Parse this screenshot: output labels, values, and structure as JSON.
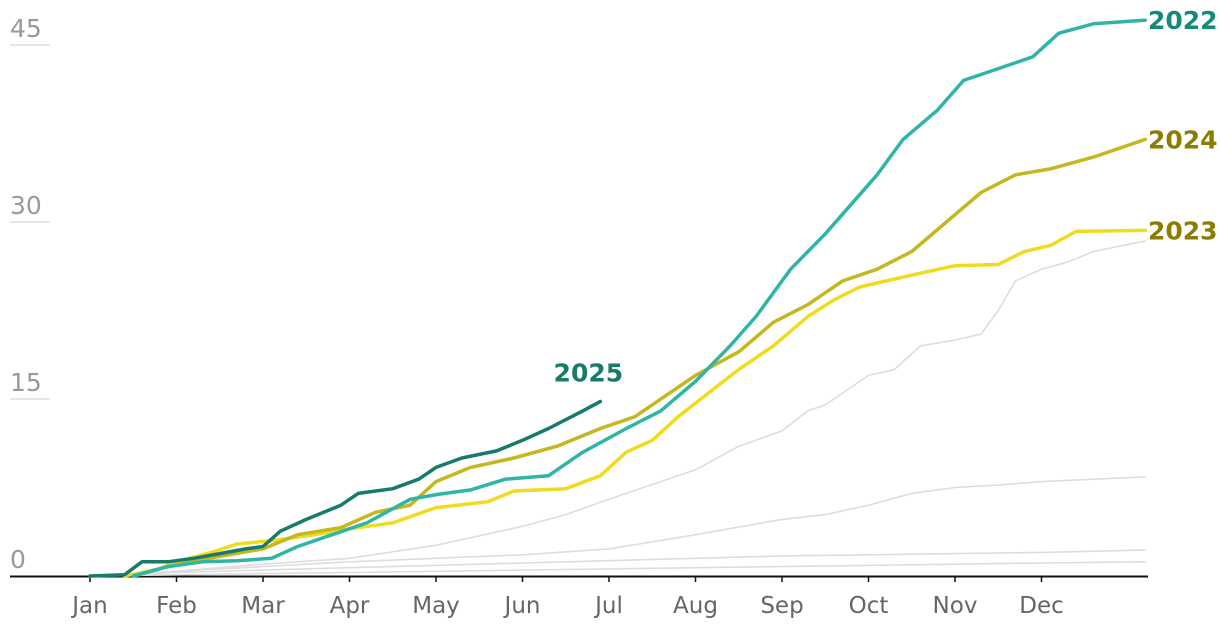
{
  "chart_data": {
    "type": "line",
    "title": "",
    "xlabel": "",
    "ylabel": "",
    "ylim": [
      0,
      46
    ],
    "xlim": [
      0,
      12.2
    ],
    "y_ticks": [
      0,
      15,
      30,
      45
    ],
    "y_tick_labels": [
      "0",
      "15",
      "30",
      "45"
    ],
    "x_ticks": [
      0,
      1,
      2,
      3,
      4,
      5,
      6,
      7,
      8,
      9,
      10,
      11
    ],
    "x_tick_labels": [
      "Jan",
      "Feb",
      "Mar",
      "Apr",
      "May",
      "Jun",
      "Jul",
      "Aug",
      "Sep",
      "Oct",
      "Nov",
      "Dec"
    ],
    "grid": false,
    "series": [
      {
        "name": "",
        "color": "#dddddd",
        "width": 1.6,
        "points": [
          [
            0,
            0
          ],
          [
            1,
            0.1
          ],
          [
            2,
            0.2
          ],
          [
            3,
            0.3
          ],
          [
            4,
            0.4
          ],
          [
            5,
            0.5
          ],
          [
            6,
            0.6
          ],
          [
            7,
            0.7
          ],
          [
            8,
            0.8
          ],
          [
            9,
            0.9
          ],
          [
            10,
            1.0
          ],
          [
            11,
            1.1
          ],
          [
            12.2,
            1.2
          ]
        ]
      },
      {
        "name": "",
        "color": "#dddddd",
        "width": 1.6,
        "points": [
          [
            0,
            0
          ],
          [
            1,
            0.3
          ],
          [
            2,
            0.5
          ],
          [
            3,
            0.7
          ],
          [
            4,
            0.9
          ],
          [
            5,
            1.1
          ],
          [
            6,
            1.3
          ],
          [
            7,
            1.5
          ],
          [
            8,
            1.7
          ],
          [
            9,
            1.8
          ],
          [
            10,
            1.9
          ],
          [
            11,
            2.0
          ],
          [
            12.2,
            2.2
          ]
        ]
      },
      {
        "name": "",
        "color": "#dddddd",
        "width": 1.6,
        "points": [
          [
            0,
            0
          ],
          [
            1,
            0.4
          ],
          [
            2,
            0.8
          ],
          [
            3,
            1.2
          ],
          [
            4,
            1.5
          ],
          [
            5,
            1.8
          ],
          [
            6,
            2.3
          ],
          [
            7,
            3.5
          ],
          [
            8,
            4.8
          ],
          [
            8.5,
            5.2
          ],
          [
            9,
            6.0
          ],
          [
            9.5,
            7.0
          ],
          [
            10,
            7.5
          ],
          [
            10.5,
            7.7
          ],
          [
            11,
            8.0
          ],
          [
            12.2,
            8.4
          ]
        ]
      },
      {
        "name": "",
        "color": "#dddddd",
        "width": 1.6,
        "points": [
          [
            0,
            0
          ],
          [
            1,
            0.4
          ],
          [
            1.5,
            0.7
          ],
          [
            2,
            1.0
          ],
          [
            3,
            1.5
          ],
          [
            4,
            2.6
          ],
          [
            5,
            4.2
          ],
          [
            5.5,
            5.2
          ],
          [
            6,
            6.5
          ],
          [
            7,
            9.0
          ],
          [
            7.5,
            11.0
          ],
          [
            8,
            12.3
          ],
          [
            8.3,
            14.0
          ],
          [
            8.5,
            14.5
          ],
          [
            9,
            17.0
          ],
          [
            9.3,
            17.5
          ],
          [
            9.6,
            19.5
          ],
          [
            10,
            20.0
          ],
          [
            10.3,
            20.5
          ],
          [
            10.5,
            22.5
          ],
          [
            10.7,
            25.0
          ],
          [
            11,
            26.0
          ],
          [
            11.3,
            26.6
          ],
          [
            11.6,
            27.5
          ],
          [
            12.2,
            28.4
          ]
        ]
      },
      {
        "name": "2023",
        "color": "#f0dc1e",
        "width": 3.5,
        "points": [
          [
            0.4,
            0
          ],
          [
            0.8,
            0.6
          ],
          [
            1,
            1.2
          ],
          [
            1.4,
            2.0
          ],
          [
            1.7,
            2.7
          ],
          [
            2.1,
            3.0
          ],
          [
            2.6,
            3.5
          ],
          [
            3,
            4.0
          ],
          [
            3.5,
            4.5
          ],
          [
            4,
            5.8
          ],
          [
            4.6,
            6.3
          ],
          [
            4.9,
            7.2
          ],
          [
            5.5,
            7.4
          ],
          [
            5.9,
            8.5
          ],
          [
            6.2,
            10.5
          ],
          [
            6.5,
            11.5
          ],
          [
            6.8,
            13.5
          ],
          [
            7.2,
            15.8
          ],
          [
            7.5,
            17.5
          ],
          [
            7.9,
            19.5
          ],
          [
            8.3,
            22.0
          ],
          [
            8.6,
            23.4
          ],
          [
            8.9,
            24.5
          ],
          [
            9.2,
            25.0
          ],
          [
            9.5,
            25.5
          ],
          [
            10,
            26.3
          ],
          [
            10.5,
            26.4
          ],
          [
            10.8,
            27.5
          ],
          [
            11.1,
            28.0
          ],
          [
            11.4,
            29.2
          ],
          [
            12.2,
            29.3
          ]
        ]
      },
      {
        "name": "2024",
        "color": "#c5b71f",
        "width": 3.5,
        "points": [
          [
            0.5,
            0
          ],
          [
            0.9,
            0.8
          ],
          [
            1.3,
            1.4
          ],
          [
            1.6,
            1.8
          ],
          [
            2,
            2.3
          ],
          [
            2.4,
            3.5
          ],
          [
            2.9,
            4.1
          ],
          [
            3.3,
            5.4
          ],
          [
            3.7,
            6.0
          ],
          [
            4,
            8.0
          ],
          [
            4.4,
            9.2
          ],
          [
            4.9,
            10.0
          ],
          [
            5.4,
            11.0
          ],
          [
            5.9,
            12.5
          ],
          [
            6.3,
            13.5
          ],
          [
            6.7,
            15.5
          ],
          [
            7,
            17.0
          ],
          [
            7.5,
            19.0
          ],
          [
            7.9,
            21.5
          ],
          [
            8.3,
            23.0
          ],
          [
            8.7,
            25.0
          ],
          [
            9.1,
            26.0
          ],
          [
            9.5,
            27.5
          ],
          [
            9.9,
            30.0
          ],
          [
            10.3,
            32.5
          ],
          [
            10.7,
            34.0
          ],
          [
            11.1,
            34.5
          ],
          [
            11.6,
            35.5
          ],
          [
            12.2,
            37.0
          ]
        ]
      },
      {
        "name": "2022",
        "color": "#2fb5a6",
        "width": 3.5,
        "points": [
          [
            0.5,
            0
          ],
          [
            0.9,
            0.8
          ],
          [
            1.3,
            1.2
          ],
          [
            1.7,
            1.3
          ],
          [
            2.1,
            1.5
          ],
          [
            2.4,
            2.5
          ],
          [
            2.8,
            3.5
          ],
          [
            3.2,
            4.5
          ],
          [
            3.7,
            6.5
          ],
          [
            4,
            6.9
          ],
          [
            4.4,
            7.3
          ],
          [
            4.8,
            8.2
          ],
          [
            5.3,
            8.5
          ],
          [
            5.7,
            10.5
          ],
          [
            6.2,
            12.5
          ],
          [
            6.6,
            14.0
          ],
          [
            7,
            16.5
          ],
          [
            7.4,
            19.5
          ],
          [
            7.7,
            22.0
          ],
          [
            8.1,
            26.0
          ],
          [
            8.5,
            29.0
          ],
          [
            8.8,
            31.5
          ],
          [
            9.1,
            34.0
          ],
          [
            9.4,
            37.0
          ],
          [
            9.8,
            39.5
          ],
          [
            10.1,
            42.0
          ],
          [
            10.5,
            43.0
          ],
          [
            10.9,
            44.0
          ],
          [
            11.2,
            46.0
          ],
          [
            11.6,
            46.8
          ],
          [
            12,
            47.0
          ],
          [
            12.2,
            47.1
          ]
        ]
      },
      {
        "name": "2025",
        "color": "#187a6b",
        "width": 3.5,
        "points": [
          [
            0,
            0
          ],
          [
            0.4,
            0.1
          ],
          [
            0.6,
            1.2
          ],
          [
            0.9,
            1.2
          ],
          [
            1.2,
            1.5
          ],
          [
            1.5,
            1.9
          ],
          [
            1.8,
            2.3
          ],
          [
            2,
            2.5
          ],
          [
            2.2,
            3.8
          ],
          [
            2.5,
            4.8
          ],
          [
            2.9,
            6.0
          ],
          [
            3.1,
            7.0
          ],
          [
            3.5,
            7.4
          ],
          [
            3.8,
            8.2
          ],
          [
            4,
            9.2
          ],
          [
            4.3,
            10.0
          ],
          [
            4.7,
            10.6
          ],
          [
            5,
            11.5
          ],
          [
            5.3,
            12.5
          ],
          [
            5.7,
            14.0
          ],
          [
            5.9,
            14.8
          ]
        ]
      }
    ],
    "end_labels": [
      {
        "series": "2022",
        "text": "2022",
        "color": "#138a7a"
      },
      {
        "series": "2024",
        "text": "2024",
        "color": "#8a7d00"
      },
      {
        "series": "2023",
        "text": "2023",
        "color": "#8a7d00"
      },
      {
        "series": "2025",
        "text": "2025",
        "color": "#187a6b"
      }
    ]
  }
}
